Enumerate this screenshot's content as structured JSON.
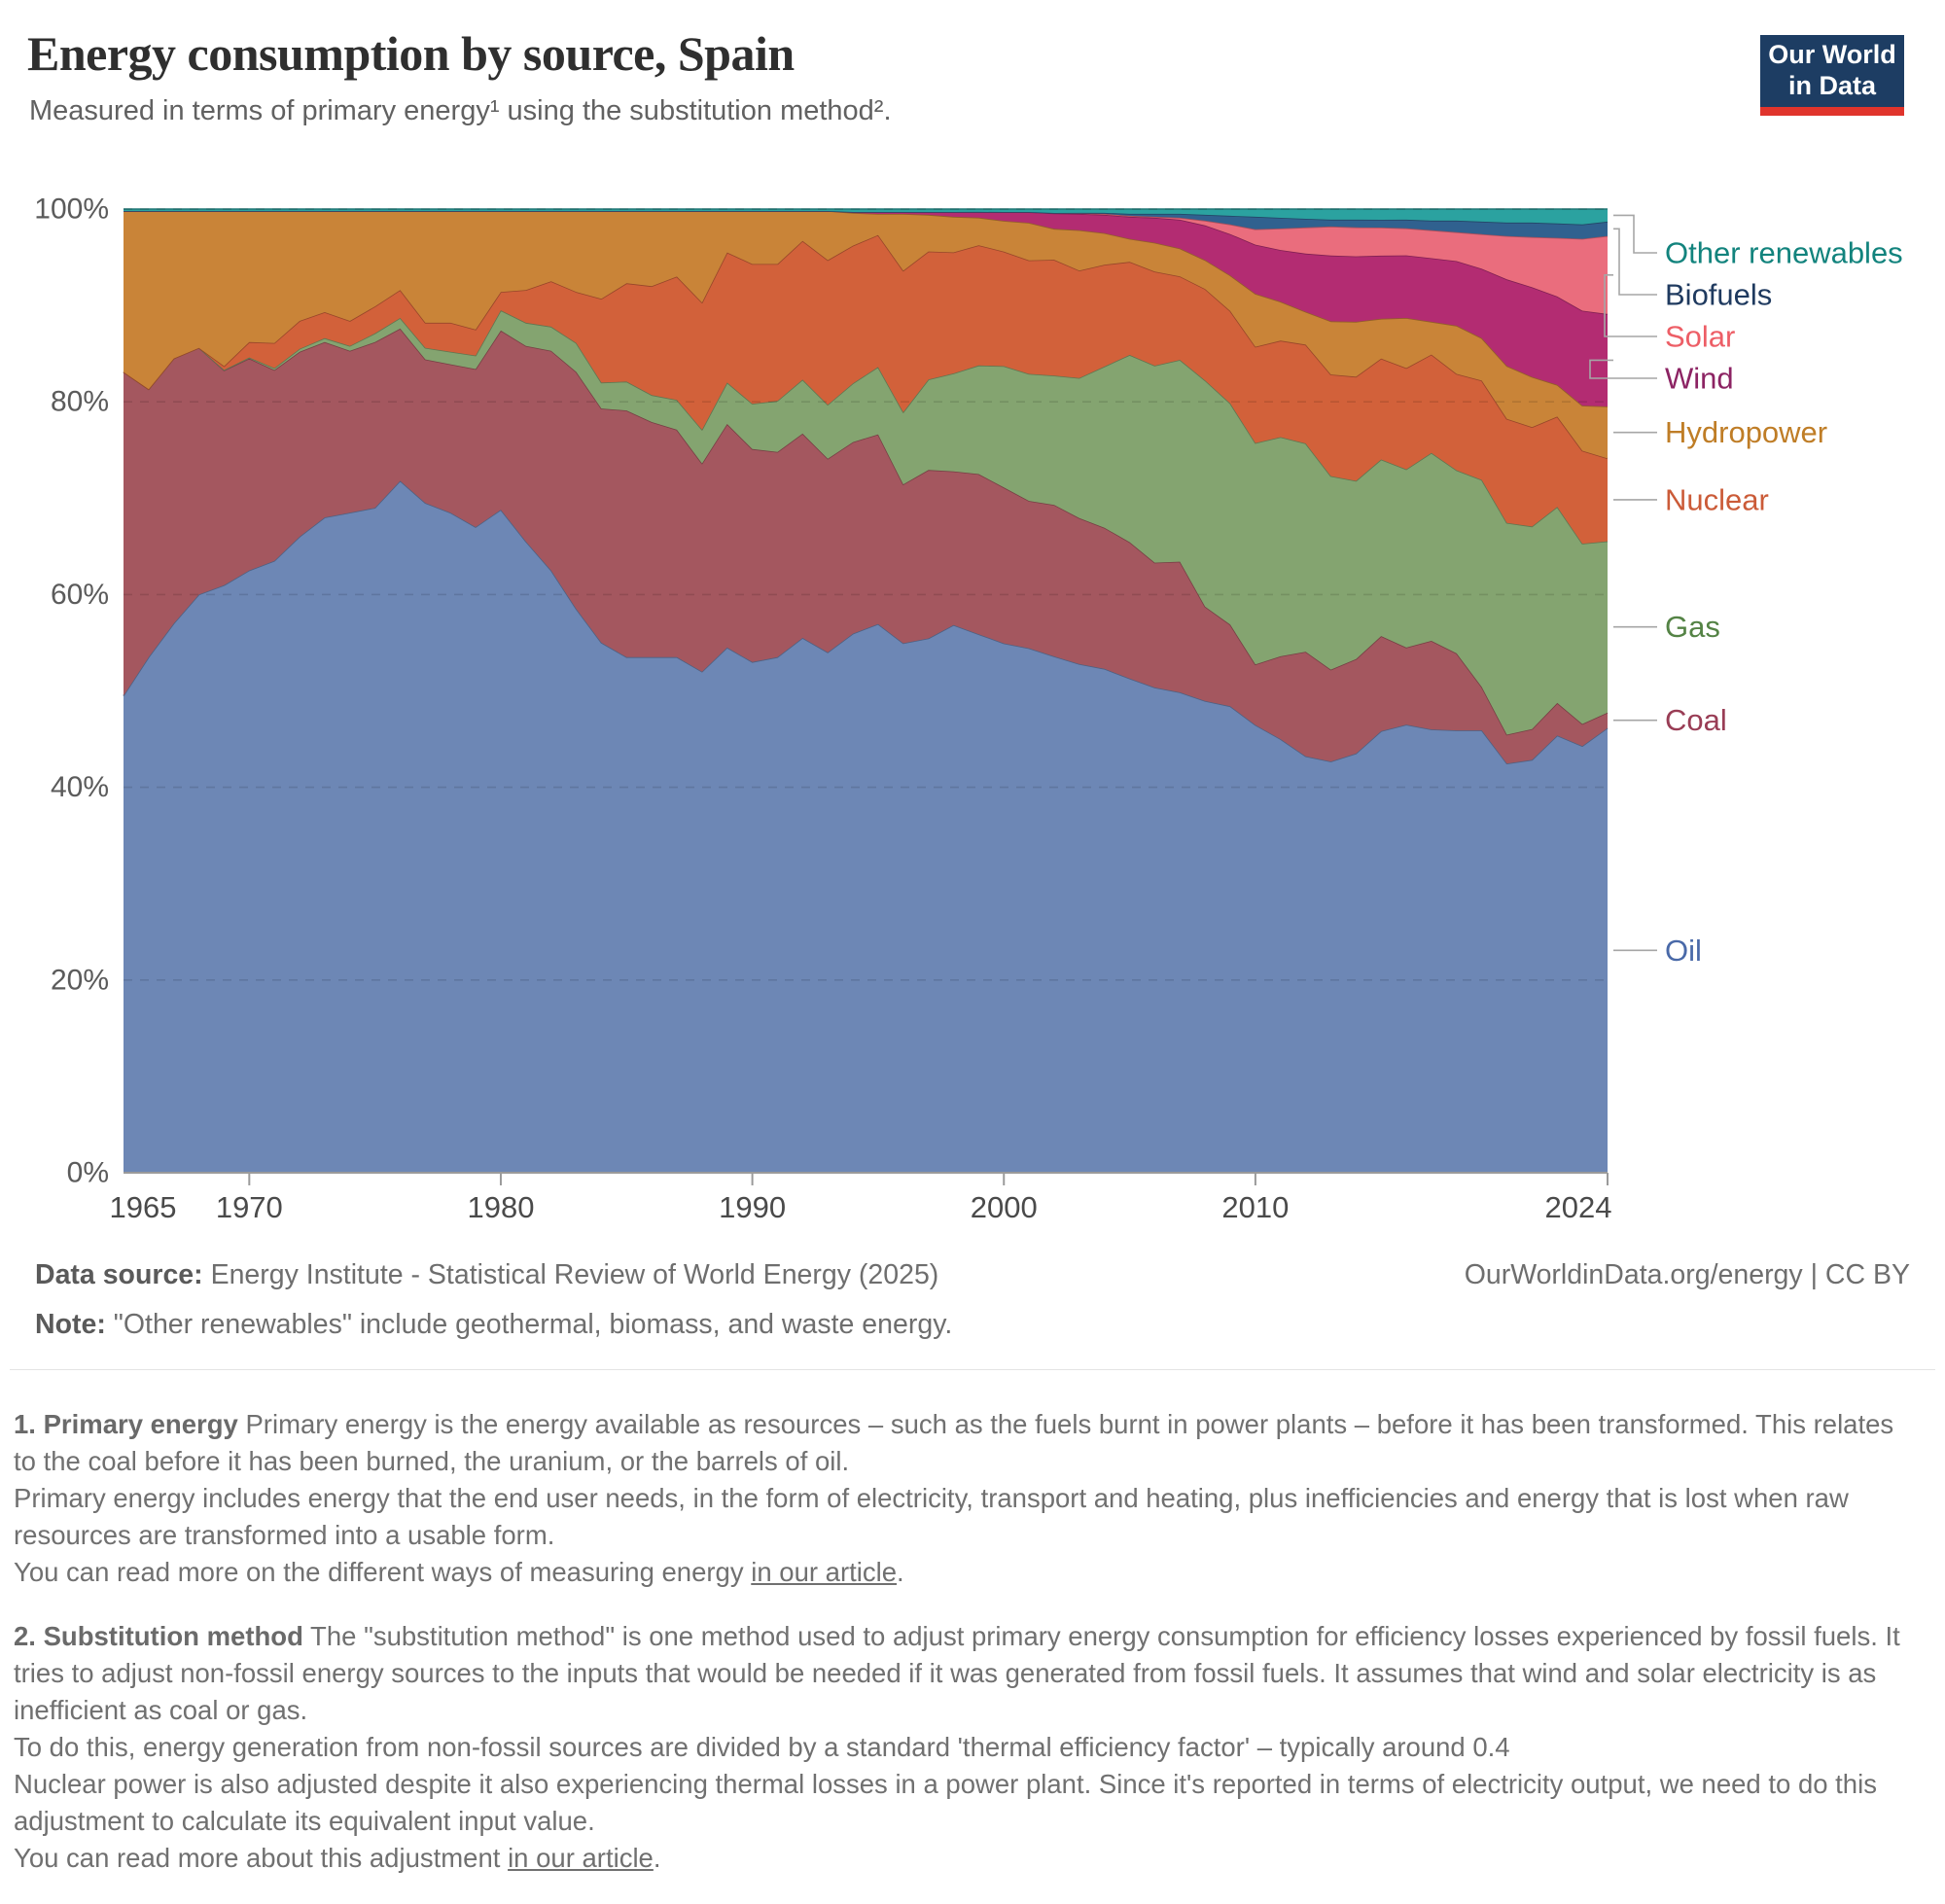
{
  "header": {
    "title": "Energy consumption by source, Spain",
    "subtitle": "Measured in terms of primary energy¹ using the substitution method².",
    "logo": {
      "line1": "Our World",
      "line2": "in Data",
      "bg": "#1d3d63",
      "accent": "#e0342c"
    }
  },
  "chart_data": {
    "type": "area",
    "stacked": true,
    "normalized_to_percent": true,
    "grid": true,
    "legend_position": "right",
    "ylim": [
      0,
      100
    ],
    "y_ticks": [
      {
        "v": 0,
        "label": "0%"
      },
      {
        "v": 20,
        "label": "20%"
      },
      {
        "v": 40,
        "label": "40%"
      },
      {
        "v": 60,
        "label": "60%"
      },
      {
        "v": 80,
        "label": "80%"
      },
      {
        "v": 100,
        "label": "100%"
      }
    ],
    "x_ticks": [
      {
        "v": 1965,
        "label": "1965",
        "dx": 20,
        "tick": false
      },
      {
        "v": 1970,
        "label": "1970",
        "dx": 0,
        "tick": true
      },
      {
        "v": 1980,
        "label": "1980",
        "dx": 0,
        "tick": true
      },
      {
        "v": 1990,
        "label": "1990",
        "dx": 0,
        "tick": true
      },
      {
        "v": 2000,
        "label": "2000",
        "dx": 0,
        "tick": true
      },
      {
        "v": 2010,
        "label": "2010",
        "dx": 0,
        "tick": true
      },
      {
        "v": 2024,
        "label": "2024",
        "dx": -30,
        "tick": true
      }
    ],
    "x": [
      1965,
      1966,
      1967,
      1968,
      1969,
      1970,
      1971,
      1972,
      1973,
      1974,
      1975,
      1976,
      1977,
      1978,
      1979,
      1980,
      1981,
      1982,
      1983,
      1984,
      1985,
      1986,
      1987,
      1988,
      1989,
      1990,
      1991,
      1992,
      1993,
      1994,
      1995,
      1996,
      1997,
      1998,
      1999,
      2000,
      2001,
      2002,
      2003,
      2004,
      2005,
      2006,
      2007,
      2008,
      2009,
      2010,
      2011,
      2012,
      2013,
      2014,
      2015,
      2016,
      2017,
      2018,
      2019,
      2020,
      2021,
      2022,
      2023,
      2024
    ],
    "series": [
      {
        "name": "Oil",
        "color": "#6d87b5",
        "label_color": "#4969a8",
        "values": [
          49.5,
          53.5,
          57.0,
          60.0,
          61.0,
          62.5,
          63.5,
          66.0,
          68.0,
          68.5,
          69.0,
          71.8,
          69.5,
          68.5,
          67.0,
          68.8,
          65.5,
          62.5,
          58.5,
          55.0,
          53.5,
          53.5,
          53.5,
          52.0,
          54.5,
          53.0,
          53.5,
          55.5,
          54.0,
          56.0,
          57.0,
          55.0,
          55.5,
          57.0,
          56.5,
          55.0,
          54.5,
          53.5,
          53.0,
          52.5,
          51.5,
          50.5,
          50.0,
          49.0,
          48.5,
          46.5,
          44.5,
          43.0,
          42.5,
          43.5,
          45.5,
          46.5,
          46.0,
          45.9,
          45.9,
          42.5,
          42.8,
          45.5,
          44.5,
          46.2
        ]
      },
      {
        "name": "Coal",
        "color": "#a4575f",
        "label_color": "#993d55",
        "values": [
          33.6,
          27.8,
          27.5,
          25.6,
          22.3,
          22.0,
          19.8,
          19.2,
          18.2,
          16.8,
          17.2,
          15.8,
          14.9,
          15.4,
          16.4,
          18.6,
          20.3,
          22.8,
          24.6,
          24.3,
          25.6,
          24.4,
          23.6,
          21.6,
          23.2,
          22.1,
          21.3,
          21.2,
          20.1,
          19.9,
          19.7,
          16.5,
          17.5,
          16.0,
          16.8,
          16.2,
          15.3,
          15.7,
          15.2,
          14.7,
          14.2,
          13.0,
          13.6,
          9.8,
          8.5,
          6.3,
          8.5,
          10.8,
          9.5,
          9.8,
          9.8,
          8.0,
          9.2,
          8.0,
          4.5,
          3.0,
          3.2,
          3.4,
          2.3,
          1.6
        ]
      },
      {
        "name": "Gas",
        "color": "#84a470",
        "label_color": "#548345",
        "values": [
          0,
          0,
          0,
          0,
          0.05,
          0.1,
          0.2,
          0.3,
          0.4,
          0.5,
          0.9,
          1.1,
          1.2,
          1.3,
          1.4,
          2.1,
          2.4,
          2.5,
          3.0,
          2.7,
          3.0,
          2.8,
          3.1,
          3.5,
          4.3,
          4.7,
          5.3,
          5.6,
          5.6,
          6.1,
          7.0,
          7.5,
          9.4,
          10.2,
          11.4,
          12.6,
          13.2,
          13.4,
          14.6,
          16.8,
          19.5,
          20.5,
          21.0,
          23.5,
          23.0,
          23.0,
          22.5,
          21.5,
          20.0,
          18.5,
          18.2,
          18.5,
          19.5,
          19.0,
          21.5,
          22.0,
          21.0,
          20.4,
          18.8,
          17.8
        ]
      },
      {
        "name": "Nuclear",
        "color": "#d2613a",
        "label_color": "#cb5b38",
        "values": [
          0,
          0,
          0,
          0,
          0.4,
          1.6,
          2.6,
          2.9,
          2.7,
          2.6,
          2.8,
          2.9,
          2.6,
          3.0,
          2.7,
          1.9,
          3.4,
          4.7,
          5.3,
          8.7,
          10.2,
          11.3,
          12.8,
          13.2,
          13.5,
          14.5,
          14.2,
          14.4,
          15.0,
          14.3,
          13.7,
          14.7,
          13.3,
          12.6,
          12.6,
          11.9,
          11.8,
          12.0,
          11.2,
          10.6,
          9.7,
          9.8,
          8.7,
          9.5,
          9.6,
          10.0,
          9.9,
          10.2,
          10.5,
          10.8,
          10.4,
          10.5,
          10.2,
          10.0,
          10.3,
          10.8,
          10.3,
          9.4,
          9.7,
          8.6
        ]
      },
      {
        "name": "Hydropower",
        "color": "#c98438",
        "label_color": "#bf7d26",
        "values": [
          16.7,
          18.5,
          15.3,
          14.2,
          16.1,
          13.6,
          13.7,
          11.4,
          10.5,
          11.4,
          9.9,
          8.2,
          11.6,
          11.6,
          12.3,
          8.4,
          8.2,
          7.3,
          8.4,
          9.1,
          7.5,
          7.8,
          6.8,
          9.5,
          4.3,
          5.5,
          5.5,
          3.1,
          5.1,
          3.4,
          2.2,
          5.9,
          3.8,
          3.7,
          2.9,
          3.2,
          3.9,
          3.2,
          4.2,
          3.3,
          2.4,
          3.0,
          2.9,
          3.0,
          3.7,
          5.5,
          4.0,
          3.4,
          5.5,
          5.7,
          4.1,
          5.2,
          3.4,
          5.0,
          4.4,
          5.5,
          5.2,
          3.3,
          4.7,
          5.4
        ]
      },
      {
        "name": "Wind",
        "color": "#b32c72",
        "label_color": "#8c2363",
        "values": [
          0,
          0,
          0,
          0,
          0,
          0,
          0,
          0,
          0,
          0,
          0,
          0,
          0,
          0,
          0,
          0,
          0,
          0,
          0,
          0,
          0,
          0,
          0,
          0,
          0,
          0,
          0,
          0,
          0,
          0.1,
          0.2,
          0.2,
          0.3,
          0.5,
          0.6,
          0.9,
          1.1,
          1.6,
          1.7,
          1.9,
          2.3,
          2.6,
          3.0,
          3.6,
          4.3,
          5.1,
          5.3,
          6.0,
          6.8,
          6.8,
          6.5,
          6.5,
          6.6,
          6.7,
          7.2,
          9.0,
          9.3,
          9.2,
          9.9,
          9.6
        ]
      },
      {
        "name": "Solar",
        "color": "#ea6d7d",
        "label_color": "#ed5e66",
        "values": [
          0,
          0,
          0,
          0,
          0,
          0,
          0,
          0,
          0,
          0,
          0,
          0,
          0,
          0,
          0,
          0,
          0,
          0,
          0,
          0,
          0,
          0,
          0,
          0,
          0,
          0,
          0,
          0,
          0,
          0,
          0,
          0,
          0,
          0,
          0,
          0.02,
          0.02,
          0.05,
          0.1,
          0.1,
          0.1,
          0.1,
          0.2,
          0.5,
          1.0,
          1.6,
          2.2,
          2.7,
          3.0,
          3.0,
          2.9,
          2.8,
          2.9,
          3.0,
          3.6,
          4.5,
          5.2,
          6.1,
          7.5,
          8.1
        ]
      },
      {
        "name": "Biofuels",
        "color": "#30618f",
        "label_color": "#1f3a5f",
        "values": [
          0,
          0,
          0,
          0,
          0,
          0,
          0,
          0,
          0,
          0,
          0,
          0,
          0,
          0,
          0,
          0,
          0,
          0,
          0,
          0,
          0,
          0,
          0,
          0,
          0,
          0,
          0,
          0,
          0,
          0,
          0,
          0,
          0,
          0,
          0,
          0,
          0,
          0,
          0,
          0.1,
          0.2,
          0.3,
          0.4,
          0.6,
          0.9,
          1.3,
          1.1,
          0.9,
          0.7,
          0.8,
          0.8,
          0.9,
          1.0,
          1.2,
          1.3,
          1.4,
          1.5,
          1.5,
          1.5,
          1.5
        ]
      },
      {
        "name": "Other renewables",
        "color": "#2ba2a0",
        "label_color": "#12837d",
        "values": [
          0.2,
          0.2,
          0.2,
          0.2,
          0.2,
          0.2,
          0.2,
          0.2,
          0.2,
          0.2,
          0.2,
          0.2,
          0.2,
          0.2,
          0.2,
          0.2,
          0.2,
          0.2,
          0.2,
          0.2,
          0.2,
          0.2,
          0.2,
          0.2,
          0.2,
          0.2,
          0.2,
          0.2,
          0.2,
          0.3,
          0.3,
          0.3,
          0.3,
          0.3,
          0.3,
          0.3,
          0.3,
          0.4,
          0.4,
          0.4,
          0.5,
          0.5,
          0.5,
          0.6,
          0.7,
          0.8,
          0.9,
          1.0,
          1.1,
          1.1,
          1.1,
          1.1,
          1.2,
          1.2,
          1.3,
          1.4,
          1.4,
          1.5,
          1.6,
          1.3
        ]
      }
    ]
  },
  "footer": {
    "datasource_label": "Data source:",
    "datasource_text": " Energy Institute - Statistical Review of World Energy (2025)",
    "rights": "OurWorldinData.org/energy | CC BY",
    "note_label": "Note:",
    "note_text": " \"Other renewables\" include geothermal, biomass, and waste energy."
  },
  "footnotes": [
    {
      "bold": "1. Primary energy",
      "text": " Primary energy is the energy available as resources – such as the fuels burnt in power plants – before it has been transformed. This relates to the coal before it has been burned, the uranium, or the barrels of oil.\nPrimary energy includes energy that the end user needs, in the form of electricity, transport and heating, plus inefficiencies and energy that is lost when raw resources are transformed into a usable form.\nYou can read more on the different ways of measuring energy ",
      "link": "in our article",
      "suffix": "."
    },
    {
      "bold": "2. Substitution method",
      "text": " The \"substitution method\" is one method used to adjust primary energy consumption for efficiency losses experienced by fossil fuels. It tries to adjust non-fossil energy sources to the inputs that would be needed if it was generated from fossil fuels. It assumes that wind and solar electricity is as inefficient as coal or gas.\nTo do this, energy generation from non-fossil sources are divided by a standard 'thermal efficiency factor' – typically around 0.4\nNuclear power is also adjusted despite it also experiencing thermal losses in a power plant. Since it's reported in terms of electricity output, we need to do this adjustment to calculate its equivalent input value.\nYou can read more about this adjustment ",
      "link": "in our article",
      "suffix": "."
    }
  ]
}
